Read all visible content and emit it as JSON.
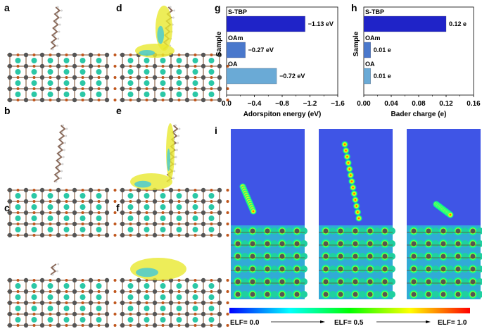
{
  "panel_labels": {
    "a": "a",
    "b": "b",
    "c": "c",
    "d": "d",
    "e": "e",
    "f": "f",
    "g": "g",
    "h": "h",
    "i": "i"
  },
  "chart_data": [
    {
      "type": "bar",
      "orientation": "horizontal",
      "panel": "g",
      "categories": [
        "S-TBP",
        "OAm",
        "OA"
      ],
      "values": [
        -1.13,
        -0.27,
        -0.72
      ],
      "data_labels": [
        "−1.13 eV",
        "−0.27 eV",
        "−0.72 eV"
      ],
      "xlabel": "Adorspiton energy (eV)",
      "ylabel": "Sample",
      "xlim": [
        0.0,
        -1.6
      ],
      "xticks": [
        "0.0",
        "−0.4",
        "−0.8",
        "−1.2",
        "−1.6"
      ],
      "colors": [
        "#1f23c8",
        "#4a78cc",
        "#6aaad6"
      ],
      "grid": false
    },
    {
      "type": "bar",
      "orientation": "horizontal",
      "panel": "h",
      "categories": [
        "S-TBP",
        "OAm",
        "OA"
      ],
      "values": [
        0.12,
        0.01,
        0.01
      ],
      "data_labels": [
        "0.12 e",
        "0.01 e",
        "0.01 e"
      ],
      "xlabel": "Bader charge (e)",
      "ylabel": "Sample",
      "xlim": [
        0.0,
        0.16
      ],
      "xticks": [
        "0.00",
        "0.04",
        "0.08",
        "0.12",
        "0.16"
      ],
      "colors": [
        "#1f23c8",
        "#4a78cc",
        "#6aaad6"
      ],
      "grid": false
    }
  ],
  "elf_colorbar": {
    "labels": [
      "ELF= 0.0",
      "ELF= 0.5",
      "ELF= 1.0"
    ],
    "colors": [
      "#0000ff",
      "#00ffff",
      "#00ff00",
      "#ffff00",
      "#ff0000"
    ]
  }
}
